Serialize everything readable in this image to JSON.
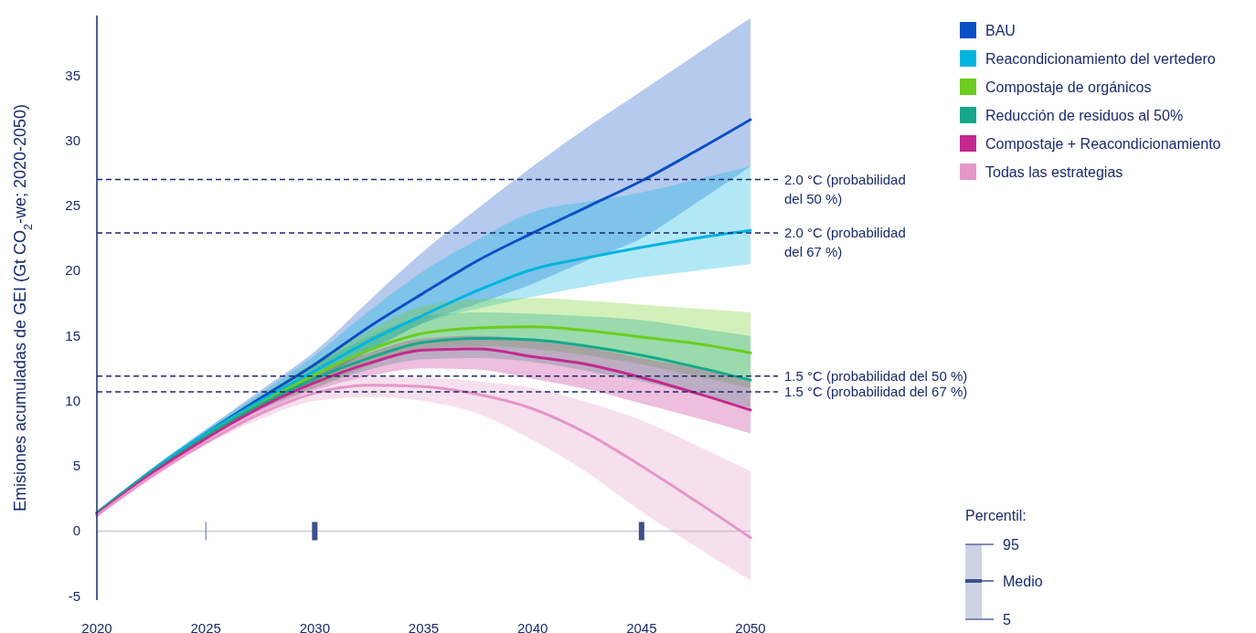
{
  "chart_data": {
    "type": "line",
    "ylabel": "Emisiones acumuladas de GEI (Gt CO$_{2}$-we; 2020-2050)",
    "x": [
      2020,
      2022.5,
      2025,
      2027.5,
      2030,
      2032.5,
      2035,
      2037.5,
      2040,
      2042.5,
      2045,
      2047.5,
      2050
    ],
    "xlim": [
      2020,
      2050
    ],
    "xticks": [
      2020,
      2025,
      2030,
      2035,
      2040,
      2045,
      2050
    ],
    "ylim": [
      -5.3,
      39.6
    ],
    "yticks": [
      -5,
      0,
      5,
      10,
      15,
      20,
      25,
      30,
      35
    ],
    "grid": false,
    "legend": "top right",
    "marker": "none",
    "line_style": "solid",
    "series": [
      {
        "name": "BAU",
        "color": "#0a4fc4",
        "values": [
          1.4,
          4.6,
          7.5,
          10.2,
          12.8,
          15.7,
          18.3,
          20.8,
          22.9,
          24.9,
          26.9,
          29.2,
          31.6
        ],
        "lower": [
          1.3,
          4.4,
          7.2,
          9.6,
          11.5,
          13.8,
          16.0,
          17.5,
          19.0,
          20.8,
          22.5,
          25.2,
          28.0
        ],
        "upper": [
          1.5,
          4.8,
          7.8,
          10.8,
          13.8,
          17.7,
          21.5,
          24.8,
          28.0,
          31.0,
          33.8,
          36.6,
          39.4
        ]
      },
      {
        "name": "Reacondicionamiento del vertedero",
        "color": "#00b4e0",
        "values": [
          1.4,
          4.6,
          7.5,
          10.0,
          12.3,
          14.6,
          16.6,
          18.5,
          20.1,
          21.0,
          21.8,
          22.5,
          23.1
        ],
        "lower": [
          1.3,
          4.4,
          7.2,
          9.5,
          11.5,
          13.9,
          16.0,
          17.1,
          18.0,
          18.8,
          19.5,
          20.0,
          20.5
        ],
        "upper": [
          1.5,
          4.8,
          7.8,
          10.6,
          13.5,
          16.9,
          20.0,
          22.4,
          24.5,
          25.3,
          26.0,
          27.0,
          28.0
        ]
      },
      {
        "name": "Compostaje de orgánicos",
        "color": "#6ccc1f",
        "values": [
          null,
          null,
          7.3,
          9.8,
          12.0,
          13.9,
          15.2,
          15.6,
          15.7,
          15.4,
          14.9,
          14.4,
          13.7
        ],
        "lower": [
          1.3,
          4.3,
          7.1,
          9.4,
          11.0,
          12.7,
          14.0,
          14.2,
          14.0,
          13.5,
          12.8,
          11.9,
          11.0
        ],
        "upper": [
          1.5,
          4.7,
          7.6,
          10.4,
          13.0,
          15.4,
          17.3,
          17.8,
          17.9,
          17.7,
          17.4,
          17.1,
          16.8
        ]
      },
      {
        "name": "Reducción de residuos al 50%",
        "color": "#16a88c",
        "values": [
          1.4,
          4.5,
          7.3,
          9.7,
          11.7,
          13.3,
          14.5,
          14.8,
          14.7,
          14.2,
          13.5,
          12.6,
          11.6
        ],
        "lower": [
          1.3,
          4.3,
          7.1,
          9.3,
          11.0,
          12.4,
          13.2,
          13.3,
          13.0,
          12.3,
          11.5,
          10.5,
          9.5
        ],
        "upper": [
          1.5,
          4.7,
          7.5,
          10.2,
          12.8,
          14.9,
          16.5,
          16.8,
          16.7,
          16.5,
          16.2,
          15.6,
          15.0
        ]
      },
      {
        "name": "Compostaje + Reacondicionamiento",
        "color": "#c4288f",
        "values": [
          1.3,
          4.4,
          7.1,
          9.5,
          11.4,
          12.9,
          13.9,
          14.0,
          13.4,
          12.8,
          11.8,
          10.6,
          9.3
        ],
        "lower": [
          1.2,
          4.2,
          6.9,
          9.1,
          10.8,
          11.9,
          12.5,
          12.4,
          11.7,
          10.9,
          9.8,
          8.7,
          7.5
        ],
        "upper": [
          1.4,
          4.6,
          7.3,
          9.9,
          12.0,
          13.7,
          14.8,
          15.0,
          14.7,
          14.1,
          13.3,
          12.5,
          11.5
        ]
      },
      {
        "name": "Todas las estrategias",
        "color": "#e497c8",
        "values": [
          1.2,
          4.2,
          6.8,
          9.0,
          10.6,
          11.2,
          11.1,
          10.5,
          9.4,
          7.5,
          5.0,
          2.3,
          -0.5
        ],
        "lower": [
          1.1,
          4.0,
          6.6,
          8.6,
          10.0,
          10.3,
          10.0,
          9.0,
          7.0,
          4.5,
          1.5,
          -1.2,
          -3.8
        ],
        "upper": [
          1.3,
          4.4,
          7.0,
          9.4,
          11.3,
          11.8,
          11.8,
          11.5,
          11.0,
          9.9,
          8.5,
          6.6,
          4.6
        ]
      }
    ],
    "ref_lines": [
      {
        "axis": "y",
        "value": 27,
        "label": "2.0 °C (probabilidad del 50 %)",
        "color": "#1a2a6c",
        "line_style": "dashed"
      },
      {
        "axis": "y",
        "value": 22.9,
        "label": "2.0 °C (probabilidad del 67 %)",
        "color": "#1a2a6c",
        "line_style": "dashed"
      },
      {
        "axis": "y",
        "value": 11.9,
        "label": "1.5 °C (probabilidad del 50 %)",
        "color": "#1a2a6c",
        "line_style": "dashed"
      },
      {
        "axis": "y",
        "value": 10.7,
        "label": "1.5 °C (probabilidad del 67 %)",
        "color": "#1a2a6c",
        "line_style": "dashed"
      },
      {
        "axis": "y",
        "value": 0,
        "color": "#c8ccd8",
        "line_style": "solid"
      }
    ],
    "annotations": [
      "Percentil:",
      "95",
      "Medio",
      "5"
    ]
  }
}
